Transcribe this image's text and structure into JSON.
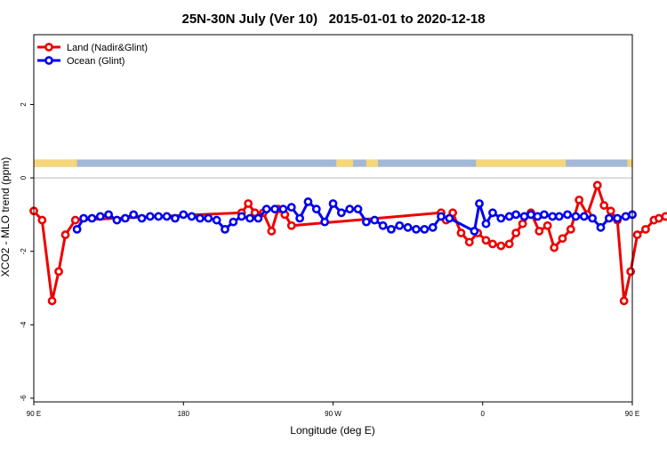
{
  "chart_data": {
    "type": "line",
    "title": "25N-30N July (Ver 10)   2015-01-01 to 2020-12-18",
    "xlabel": "Longitude (deg E)",
    "ylabel": "XCO2 - MLO trend (ppm)",
    "xlim": [
      90,
      450
    ],
    "ylim": [
      -6.1,
      3.9
    ],
    "x_ticks": [
      {
        "value": 90,
        "label": "90 E"
      },
      {
        "value": 180,
        "label": "180"
      },
      {
        "value": 270,
        "label": "90 W"
      },
      {
        "value": 360,
        "label": "0"
      },
      {
        "value": 450,
        "label": "90 E"
      },
      {
        "value": 540,
        "label": "180"
      }
    ],
    "y_ticks": [
      {
        "value": -6,
        "label": "-6"
      },
      {
        "value": -4,
        "label": "-4"
      },
      {
        "value": -2,
        "label": "-2"
      },
      {
        "value": 0,
        "label": "0"
      },
      {
        "value": 2,
        "label": "2"
      }
    ],
    "legend_position": "top-left",
    "land_ocean_band": {
      "y_range": [
        0.3,
        0.5
      ],
      "land_color": "#f5d67a",
      "ocean_color": "#a3b8d6",
      "land_segments": [
        [
          90,
          116
        ],
        [
          272,
          282
        ],
        [
          290,
          297
        ],
        [
          356,
          410
        ],
        [
          447,
          450
        ],
        [
          450,
          500
        ]
      ]
    },
    "series": [
      {
        "name": "Land (Nadir&Glint)",
        "color": "#ee0000",
        "x": [
          90,
          95,
          101,
          105,
          109,
          115,
          215,
          219,
          223,
          228,
          233,
          237,
          241,
          245,
          335,
          338,
          342,
          347,
          352,
          357,
          362,
          366,
          371,
          376,
          380,
          384,
          389,
          394,
          399,
          403,
          408,
          413,
          418,
          423,
          429,
          433,
          437,
          441,
          445,
          449,
          453,
          458,
          463,
          466,
          470
        ],
        "y": [
          -0.9,
          -1.15,
          -3.35,
          -2.55,
          -1.55,
          -1.15,
          -0.95,
          -0.7,
          -0.95,
          -0.95,
          -1.45,
          -0.85,
          -1.0,
          -1.3,
          -0.95,
          -1.15,
          -0.95,
          -1.5,
          -1.75,
          -1.5,
          -1.7,
          -1.8,
          -1.85,
          -1.8,
          -1.5,
          -1.25,
          -0.95,
          -1.45,
          -1.3,
          -1.9,
          -1.65,
          -1.4,
          -0.6,
          -1.0,
          -0.2,
          -0.75,
          -0.9,
          -1.15,
          -3.35,
          -2.55,
          -1.55,
          -1.4,
          -1.15,
          -1.1,
          -1.05
        ]
      },
      {
        "name": "Ocean (Glint)",
        "color": "#0000ee",
        "x": [
          116,
          120,
          125,
          130,
          135,
          140,
          145,
          150,
          155,
          160,
          165,
          170,
          175,
          180,
          185,
          190,
          195,
          200,
          205,
          210,
          215,
          220,
          225,
          230,
          235,
          240,
          245,
          250,
          255,
          260,
          265,
          270,
          275,
          280,
          285,
          290,
          295,
          300,
          305,
          310,
          315,
          320,
          325,
          330,
          335,
          340,
          355,
          358,
          362,
          366,
          371,
          376,
          380,
          385,
          389,
          393,
          397,
          402,
          406,
          411,
          416,
          421,
          426,
          431,
          436,
          441,
          446,
          450
        ],
        "y": [
          -1.4,
          -1.1,
          -1.1,
          -1.05,
          -1.0,
          -1.15,
          -1.1,
          -1.0,
          -1.1,
          -1.05,
          -1.05,
          -1.05,
          -1.1,
          -1.0,
          -1.05,
          -1.1,
          -1.1,
          -1.15,
          -1.4,
          -1.2,
          -1.05,
          -1.1,
          -1.1,
          -0.85,
          -0.85,
          -0.85,
          -0.8,
          -1.1,
          -0.65,
          -0.85,
          -1.2,
          -0.7,
          -0.95,
          -0.85,
          -0.85,
          -1.2,
          -1.15,
          -1.3,
          -1.4,
          -1.3,
          -1.35,
          -1.4,
          -1.4,
          -1.35,
          -1.05,
          -1.1,
          -1.45,
          -0.7,
          -1.25,
          -0.95,
          -1.1,
          -1.05,
          -1.0,
          -1.05,
          -1.0,
          -1.05,
          -1.0,
          -1.05,
          -1.05,
          -1.0,
          -1.05,
          -1.05,
          -1.1,
          -1.35,
          -1.1,
          -1.1,
          -1.05,
          -1.0
        ]
      }
    ]
  }
}
